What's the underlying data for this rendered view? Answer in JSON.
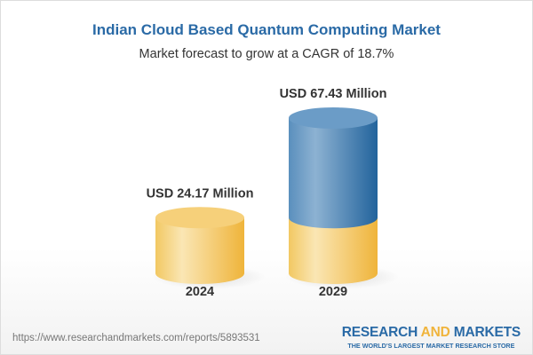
{
  "header": {
    "title": "Indian Cloud Based Quantum Computing Market",
    "subtitle": "Market forecast to grow at a CAGR of 18.7%"
  },
  "chart_data": {
    "type": "bar",
    "style": "3d-cylinder",
    "title": "Indian Cloud Based Quantum Computing Market",
    "subtitle": "Market forecast to grow at a CAGR of 18.7%",
    "categories": [
      "2024",
      "2029"
    ],
    "values": [
      24.17,
      67.43
    ],
    "data_labels": [
      "USD 24.17 Million",
      "USD 67.43 Million"
    ],
    "unit": "USD Million",
    "cagr_percent": 18.7,
    "colors": {
      "base": "#f2c14e",
      "growth": "#2f6ea3"
    },
    "grid": false,
    "legend": "none"
  },
  "footer": {
    "url": "https://www.researchandmarkets.com/reports/5893531",
    "logo_part1": "RESEARCH ",
    "logo_part2": "AND",
    "logo_part3": " MARKETS",
    "tagline": "THE WORLD'S LARGEST MARKET RESEARCH STORE"
  }
}
